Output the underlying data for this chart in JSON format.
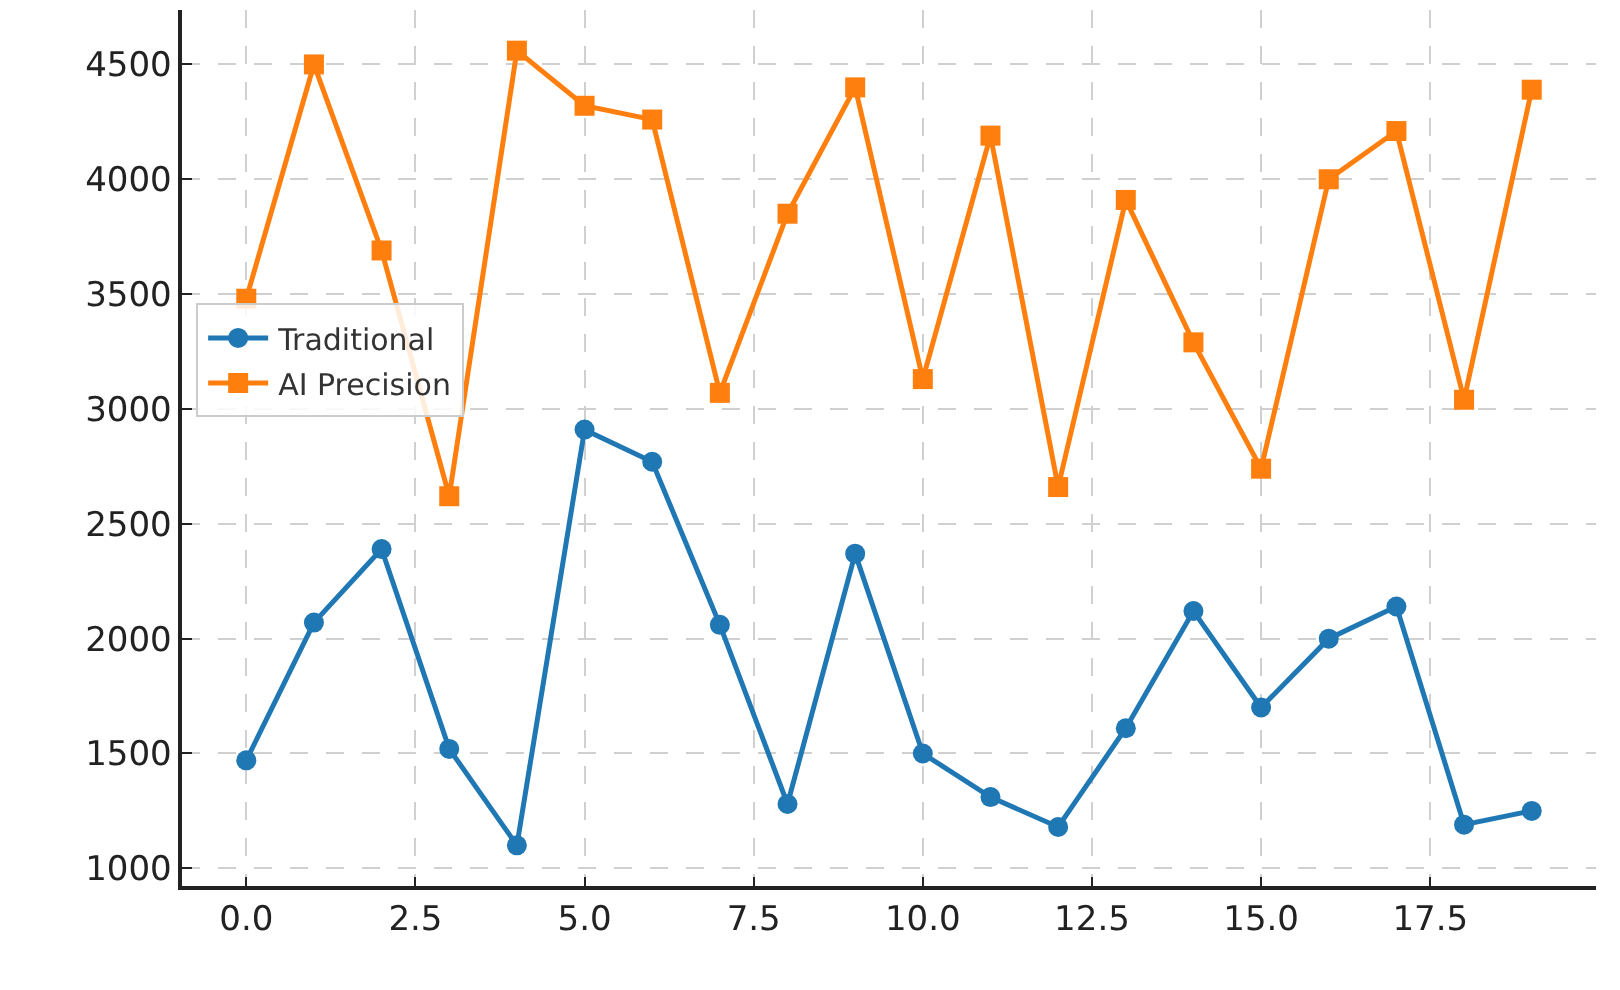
{
  "chart_data": {
    "type": "line",
    "x": [
      0,
      1,
      2,
      3,
      4,
      5,
      6,
      7,
      8,
      9,
      10,
      11,
      12,
      13,
      14,
      15,
      16,
      17,
      18,
      19
    ],
    "series": [
      {
        "name": "Traditional",
        "color": "#1f77b4",
        "marker": "circle",
        "values": [
          1470,
          2070,
          2390,
          1520,
          1100,
          2910,
          2770,
          2060,
          1280,
          2370,
          1500,
          1310,
          1180,
          1610,
          2120,
          1700,
          2000,
          2140,
          1190,
          1250
        ]
      },
      {
        "name": "AI Precision",
        "color": "#ff7f0e",
        "marker": "square",
        "values": [
          3480,
          4500,
          3690,
          2620,
          4560,
          4320,
          4260,
          3070,
          3850,
          4400,
          3130,
          4190,
          2660,
          3910,
          3290,
          2740,
          4000,
          4210,
          3040,
          4390
        ]
      }
    ],
    "xlim": [
      -0.95,
      19.95
    ],
    "xticks": [
      {
        "value": 0,
        "label": "0.0"
      },
      {
        "value": 2.5,
        "label": "2.5"
      },
      {
        "value": 5,
        "label": "5.0"
      },
      {
        "value": 7.5,
        "label": "7.5"
      },
      {
        "value": 10,
        "label": "10.0"
      },
      {
        "value": 12.5,
        "label": "12.5"
      },
      {
        "value": 15,
        "label": "15.0"
      },
      {
        "value": 17.5,
        "label": "17.5"
      }
    ],
    "ylim": [
      923,
      4737
    ],
    "yticks": [
      1000,
      1500,
      2000,
      2500,
      3000,
      3500,
      4000,
      4500
    ],
    "grid": true,
    "legend": "left",
    "line_style": "solid"
  }
}
